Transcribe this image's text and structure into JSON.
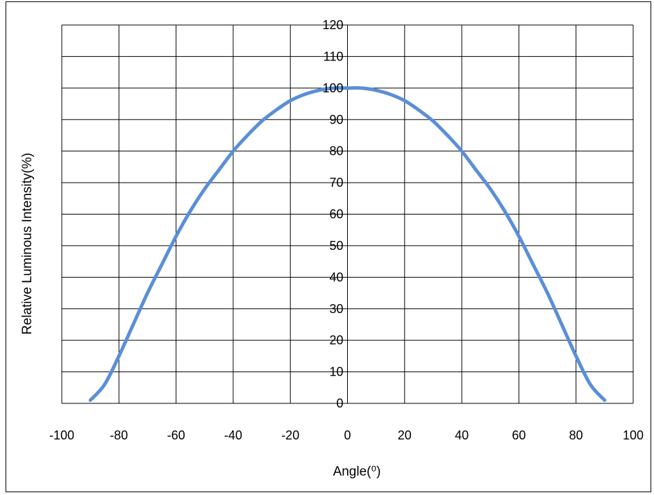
{
  "chart_data": {
    "type": "line",
    "title": "",
    "xlabel": "Angle(⁰)",
    "ylabel": "Relative Luminous Intensity(%)",
    "xlim": [
      -100,
      100
    ],
    "ylim": [
      0,
      120
    ],
    "x_ticks": [
      -100,
      -80,
      -60,
      -40,
      -20,
      0,
      20,
      40,
      60,
      80,
      100
    ],
    "y_ticks": [
      0,
      10,
      20,
      30,
      40,
      50,
      60,
      70,
      80,
      90,
      100,
      110,
      120
    ],
    "grid": true,
    "series": [
      {
        "color": "#5B8FD6",
        "x": [
          -90,
          -85,
          -80,
          -75,
          -70,
          -65,
          -60,
          -55,
          -50,
          -45,
          -40,
          -35,
          -30,
          -25,
          -20,
          -15,
          -10,
          -5,
          0,
          5,
          10,
          15,
          20,
          25,
          30,
          35,
          40,
          45,
          50,
          55,
          60,
          65,
          70,
          75,
          80,
          85,
          90
        ],
        "y": [
          1,
          6,
          15,
          25,
          35,
          44,
          53,
          61,
          68,
          74,
          80,
          85,
          89.5,
          93,
          96,
          98,
          99.3,
          100,
          100,
          100,
          99.3,
          98,
          96,
          93,
          89.5,
          85,
          80,
          74,
          68,
          61,
          53,
          44,
          35,
          25,
          15,
          6,
          1
        ]
      }
    ]
  }
}
